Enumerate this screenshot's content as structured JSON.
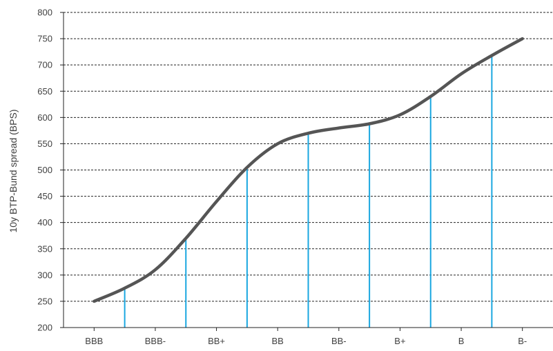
{
  "chart_data": {
    "type": "line",
    "title": "",
    "xlabel": "",
    "ylabel": "10y BTP-Bund spread (BPS)",
    "ylim": [
      200,
      800
    ],
    "yticks": [
      200,
      250,
      300,
      350,
      400,
      450,
      500,
      550,
      600,
      650,
      700,
      750,
      800
    ],
    "categories": [
      "BBB",
      "BBB-",
      "BB+",
      "BB",
      "BB-",
      "B+",
      "B",
      "B-"
    ],
    "grid": "horizontal dashed",
    "legend": "none",
    "curve": {
      "x": [
        0,
        0.5,
        1,
        1.5,
        2,
        2.5,
        3,
        3.5,
        4,
        4.5,
        5,
        5.5,
        6,
        6.5,
        7
      ],
      "y": [
        250,
        275,
        310,
        370,
        440,
        505,
        550,
        570,
        580,
        588,
        605,
        640,
        683,
        718,
        750
      ]
    },
    "markers": {
      "x": [
        0.5,
        1.5,
        2.5,
        3.5,
        4.5,
        5.5,
        6.5
      ],
      "y": [
        275,
        370,
        505,
        570,
        588,
        640,
        718
      ]
    },
    "colors": {
      "curve": "#555555",
      "markers": "#1aa7e0",
      "grid": "#222222",
      "axis": "#222222",
      "text": "#404040"
    }
  }
}
